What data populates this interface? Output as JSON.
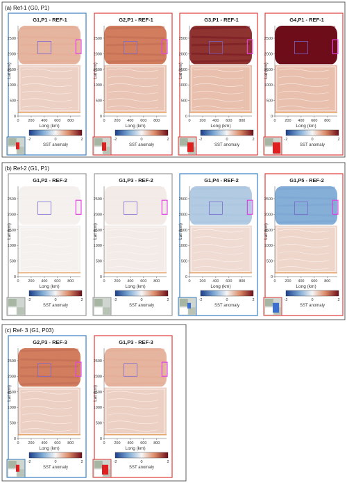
{
  "chart_data": {
    "type": "heatmap",
    "colorbar": {
      "label": "SST anomaly",
      "ticks": [
        -2,
        0,
        2
      ],
      "range": [
        -2,
        2
      ],
      "colormap": "blue-white-red"
    },
    "axes": {
      "xlabel": "Long (km)",
      "ylabel": "Lat (km)",
      "xticks": [
        0,
        200,
        400,
        600,
        800
      ],
      "yticks": [
        0,
        500,
        1000,
        1500,
        2000,
        2500
      ],
      "xlim": [
        0,
        950
      ],
      "ylim": [
        0,
        2900
      ]
    },
    "groups": [
      {
        "label": "(a) Ref-1 (G0, P1)",
        "panels": [
          {
            "title": "G1,P1 - REF-1",
            "frame": "blue",
            "north_anomaly": 0.6,
            "south_anomaly": 0.35,
            "inset": "small-red"
          },
          {
            "title": "G2,P1 - REF-1",
            "frame": "red",
            "north_anomaly": 1.1,
            "south_anomaly": 0.45,
            "inset": "medium-red"
          },
          {
            "title": "G3,P1 - REF-1",
            "frame": "red",
            "north_anomaly": 1.7,
            "south_anomaly": 0.5,
            "inset": "large-red"
          },
          {
            "title": "G4,P1 - REF-1",
            "frame": "red",
            "north_anomaly": 2.0,
            "south_anomaly": 0.5,
            "inset": "xlarge-red"
          }
        ]
      },
      {
        "label": "(b) Ref-2 (G1, P1)",
        "panels": [
          {
            "title": "G1,P2 - REF-2",
            "frame": "gray",
            "north_anomaly": 0.05,
            "south_anomaly": 0.05,
            "inset": "none"
          },
          {
            "title": "G1,P3 - REF-2",
            "frame": "gray",
            "north_anomaly": 0.1,
            "south_anomaly": 0.1,
            "inset": "none"
          },
          {
            "title": "G1,P4 - REF-2",
            "frame": "blue",
            "north_anomaly": -0.55,
            "south_anomaly": 0.25,
            "inset": "small-blue"
          },
          {
            "title": "G1,P5 - REF-2",
            "frame": "red",
            "north_anomaly": -0.9,
            "south_anomaly": 0.3,
            "inset": "large-blue"
          }
        ]
      },
      {
        "label": "(c) Ref- 3 (G1, P03)",
        "panels": [
          {
            "title": "G2,P3 - REF-3",
            "frame": "blue",
            "north_anomaly": 1.1,
            "south_anomaly": 0.35,
            "inset": "small-red"
          },
          {
            "title": "G1,P3 - REF-3",
            "frame": "red",
            "north_anomaly": 0.6,
            "south_anomaly": 0.35,
            "inset": "large-red"
          }
        ]
      }
    ]
  },
  "colors": {
    "frame_blue": "#3a7fc2",
    "frame_red": "#e03b3b",
    "frame_gray": "#999999",
    "magenta_box": "#e040e0",
    "purple_box": "#7766cc",
    "orange_line": "#e8a060"
  }
}
